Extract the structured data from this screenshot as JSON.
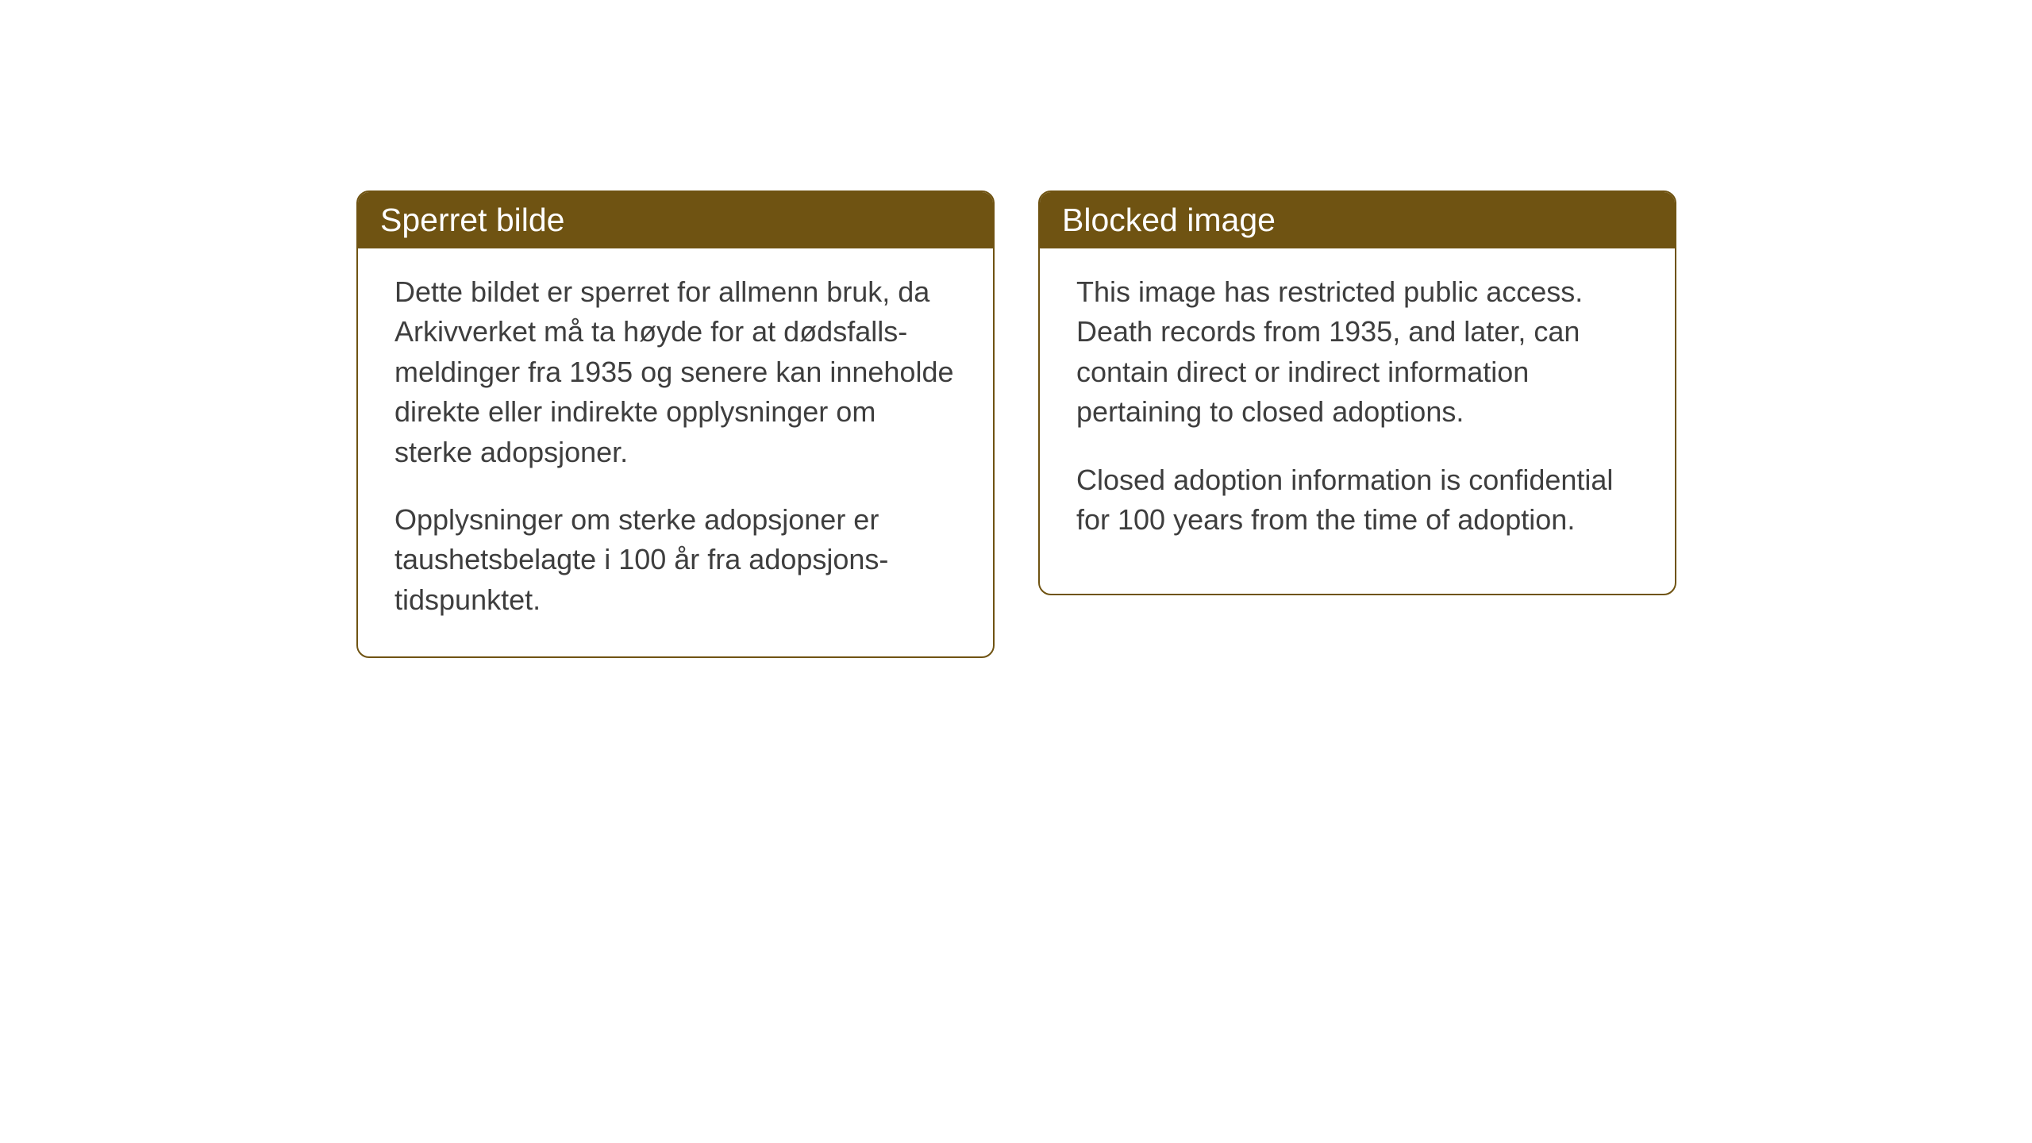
{
  "cards": [
    {
      "title": "Sperret bilde",
      "paragraph1": "Dette bildet er sperret for allmenn bruk, da Arkivverket må ta høyde for at dødsfalls-meldinger fra 1935 og senere kan inneholde direkte eller indirekte opplysninger om sterke adopsjoner.",
      "paragraph2": "Opplysninger om sterke adopsjoner er taushetsbelagte i 100 år fra adopsjons-tidspunktet."
    },
    {
      "title": "Blocked image",
      "paragraph1": "This image has restricted public access. Death records from 1935, and later, can contain direct or indirect information pertaining to closed adoptions.",
      "paragraph2": "Closed adoption information is confidential for 100 years from the time of adoption."
    }
  ],
  "styling": {
    "header_background": "#6F5312",
    "header_text_color": "#ffffff",
    "border_color": "#6F5312",
    "body_text_color": "#3e3e3e",
    "card_background": "#ffffff",
    "page_background": "#ffffff",
    "header_fontsize": 41,
    "body_fontsize": 36,
    "border_radius": 16,
    "border_width": 2
  }
}
